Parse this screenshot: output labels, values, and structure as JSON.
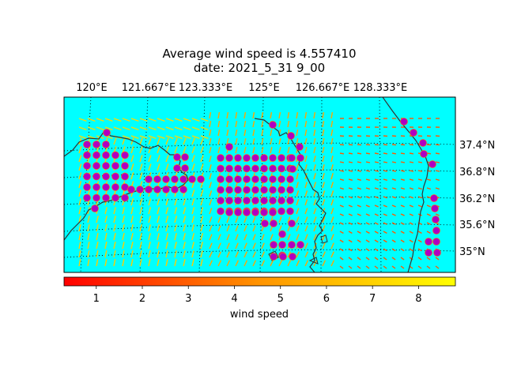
{
  "title_line1": "Average wind speed is 4.557410",
  "title_line2": "date: 2021_5_31 9_00",
  "map": {
    "background_color": "#00ffff",
    "coast_color": "#333333",
    "grid_style": "dotted",
    "lon_labels": [
      "120°E",
      "121.667°E",
      "123.333°E",
      "125°E",
      "126.667°E",
      "128.333°E"
    ],
    "lat_labels": [
      "37.4°N",
      "36.8°N",
      "36.2°N",
      "35.6°N",
      "35°N"
    ],
    "marker_color": "#b000c0",
    "marker_edge": "#ff7f00"
  },
  "colorbar": {
    "label": "wind speed",
    "ticks": [
      "1",
      "2",
      "3",
      "4",
      "5",
      "6",
      "7",
      "8"
    ],
    "colormap": [
      "#ff0000",
      "#ffff00"
    ],
    "range": [
      0.3,
      8.8
    ]
  }
}
